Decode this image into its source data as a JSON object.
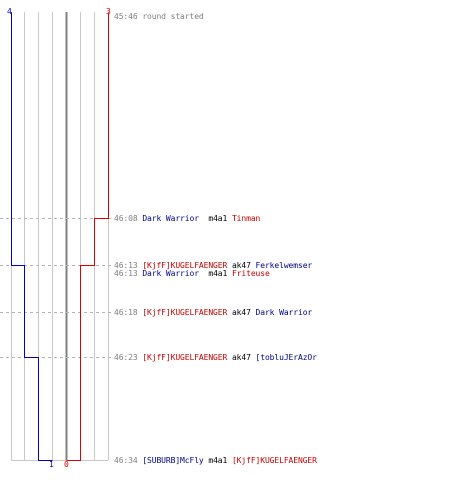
{
  "colors": {
    "team_a": "#0000cc",
    "team_b": "#dd0000",
    "grid": "#c8c8c8",
    "center": "#808080",
    "dash": "#b4b4b4"
  },
  "team_a": {
    "start_count": "4",
    "end_count": "1"
  },
  "team_b": {
    "start_count": "3",
    "end_count": "0"
  },
  "events": [
    {
      "time": "45:46",
      "text": "round started"
    },
    {
      "time": "46:08",
      "killer": "Dark Warrior",
      "killer_team": "blue",
      "weapon": "m4a1",
      "victim": "Tinman",
      "victim_team": "red"
    },
    {
      "time": "46:13",
      "killer": "[KjfF]KUGELFAENGER",
      "killer_team": "red",
      "weapon": "ak47",
      "victim": "Ferkelwemser",
      "victim_team": "blue"
    },
    {
      "time": "46:13",
      "killer": "Dark Warrior",
      "killer_team": "blue",
      "weapon": "m4a1",
      "victim": "Friteuse",
      "victim_team": "red"
    },
    {
      "time": "46:18",
      "killer": "[KjfF]KUGELFAENGER",
      "killer_team": "red",
      "weapon": "ak47",
      "victim": "Dark Warrior",
      "victim_team": "blue"
    },
    {
      "time": "46:23",
      "killer": "[KjfF]KUGELFAENGER",
      "killer_team": "red",
      "weapon": "ak47",
      "victim": "[tobluJErAzOr",
      "victim_team": "blue"
    },
    {
      "time": "46:34",
      "killer": "[SUBURB]McFly",
      "killer_team": "blue",
      "weapon": "m4a1",
      "victim": "[KjfF]KUGELFAENGER",
      "victim_team": "red"
    }
  ],
  "chart_data": {
    "type": "line",
    "title": "",
    "x_label": "",
    "y_label": "",
    "y": [
      "45:46",
      "46:08",
      "46:13",
      "46:13",
      "46:18",
      "46:23",
      "46:34"
    ],
    "series": [
      {
        "values": [
          4,
          4,
          4,
          3,
          3,
          2,
          1
        ],
        "color": "#0000cc"
      },
      {
        "values": [
          3,
          2,
          1,
          1,
          1,
          1,
          0
        ],
        "color": "#dd0000"
      }
    ]
  }
}
